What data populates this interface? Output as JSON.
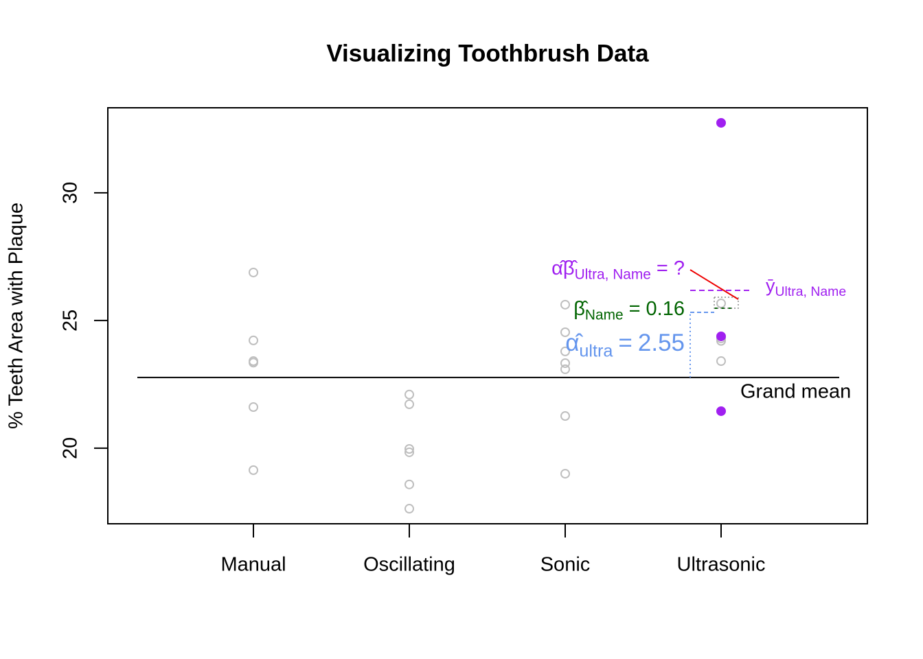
{
  "chart_data": {
    "type": "strip",
    "title": "Visualizing Toothbrush Data",
    "y_label": "% Teeth Area with Plaque",
    "categories": [
      "Manual",
      "Oscillating",
      "Sonic",
      "Ultrasonic"
    ],
    "series": [
      {
        "color": "#bebebe",
        "filled": false,
        "values": [
          [
            26.88,
            24.22,
            23.41,
            23.35,
            21.61,
            19.14
          ],
          [
            22.1,
            21.72,
            19.97,
            19.84,
            18.58,
            17.63
          ],
          [
            25.62,
            24.54,
            23.79,
            23.33,
            23.09,
            21.26,
            19.0
          ],
          [
            25.67,
            24.3,
            24.2,
            23.41
          ]
        ]
      },
      {
        "color": "#a020f0",
        "filled": true,
        "values": [
          [],
          [],
          [],
          [
            32.74,
            24.38,
            21.45
          ]
        ]
      }
    ],
    "ylim": [
      17.04,
      33.33
    ],
    "yticks": [
      20,
      25,
      30
    ],
    "grand_mean": {
      "value": 22.77,
      "label": "Grand mean"
    },
    "alpha": {
      "symbol": "α̂",
      "subscript": "ultra",
      "relation": "=",
      "value": 2.55,
      "color": "#6495ed"
    },
    "beta": {
      "symbol": "β̂",
      "subscript": "Name",
      "relation": "=",
      "value": 0.16,
      "color": "#006400"
    },
    "interaction": {
      "symbol": "α̂β̂",
      "subscript": "Ultra, Name",
      "relation": "=",
      "value": "?",
      "color": "#a020f0"
    },
    "group_mean": {
      "symbol": "ȳ",
      "subscript": "Ultra, Name",
      "value": 26.18,
      "color": "#a020f0"
    }
  }
}
